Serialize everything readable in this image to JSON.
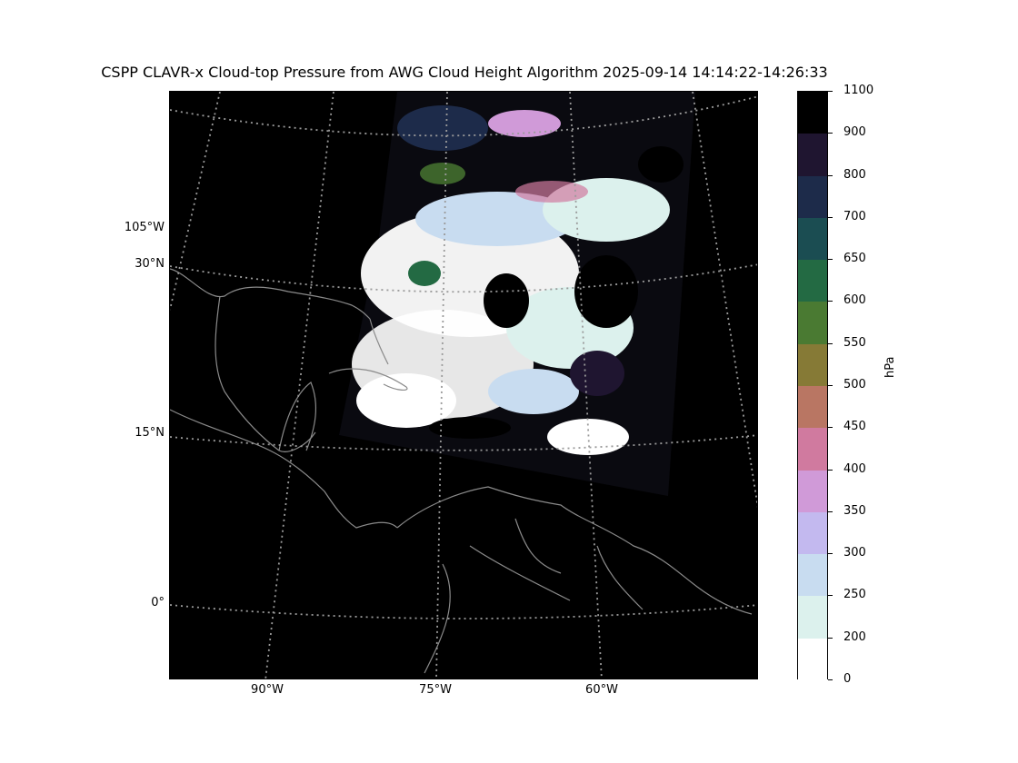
{
  "title": "CSPP CLAVR-x Cloud-top Pressure from AWG Cloud Height Algorithm 2025-09-14 14:14:22-14:26:33",
  "map": {
    "background": "#000000",
    "coastline_color": "#8a8a8a",
    "gridline_color": "#9a9a9a",
    "lat_labels": [
      "30°N",
      "15°N",
      "0°"
    ],
    "lon_label_left": "105°W",
    "lon_labels_bottom": [
      "90°W",
      "75°W",
      "60°W"
    ]
  },
  "colorbar": {
    "unit": "hPa",
    "tick_labels": [
      "1100",
      "900",
      "800",
      "700",
      "650",
      "600",
      "550",
      "500",
      "450",
      "400",
      "350",
      "300",
      "250",
      "200",
      "0"
    ],
    "colors": [
      "#000000",
      "#1f1530",
      "#1d2b4a",
      "#1b4d52",
      "#236a43",
      "#4a7a32",
      "#867a36",
      "#b97663",
      "#d07a9f",
      "#d09ad8",
      "#c3b9ef",
      "#c8dcf0",
      "#dcf1ed",
      "#ffffff"
    ]
  },
  "chart_data": {
    "type": "heatmap",
    "title": "CSPP CLAVR-x Cloud-top Pressure from AWG Cloud Height Algorithm 2025-09-14 14:14:22-14:26:33",
    "colorbar_label": "hPa",
    "colorbar_levels": [
      1100,
      900,
      800,
      700,
      650,
      600,
      550,
      500,
      450,
      400,
      350,
      300,
      250,
      200,
      0
    ],
    "lat_ticks": [
      "30°N",
      "15°N",
      "0°"
    ],
    "lon_ticks": [
      "105°W",
      "90°W",
      "75°W",
      "60°W"
    ],
    "grid": true
  }
}
